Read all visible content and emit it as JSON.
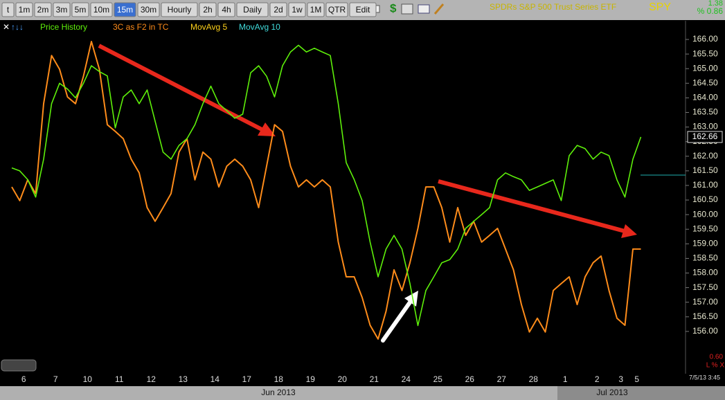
{
  "toolbar": [
    "t",
    "1m",
    "2m",
    "3m",
    "5m",
    "10m",
    "15m",
    "30m",
    "Hourly",
    "2h",
    "4h",
    "Daily",
    "2d",
    "1w",
    "1M",
    "QTR",
    "Edit"
  ],
  "active_button": "15m",
  "header": {
    "instrument": "SPDRs S&P 500 Trust Series ETF",
    "symbol": "SPY",
    "change": "1.38",
    "change_pct": "% 0.86"
  },
  "indicators": [
    {
      "name": "MovAvg 5",
      "color": "#ffd21a"
    },
    {
      "name": "MovAvg 10",
      "color": "#40dcdc"
    }
  ],
  "footer": {
    "months": [
      "Jun 2013",
      "Jul 2013"
    ],
    "timestamp": "7/5/13 3:45",
    "side_value": "0.60",
    "side_flags": "L % X"
  },
  "chart_data": {
    "type": "line",
    "categories": [
      null,
      "6",
      null,
      null,
      null,
      "7",
      null,
      null,
      null,
      "10",
      null,
      null,
      null,
      "11",
      null,
      null,
      null,
      "12",
      null,
      null,
      null,
      "13",
      null,
      null,
      null,
      "14",
      null,
      null,
      null,
      "17",
      null,
      null,
      null,
      "18",
      null,
      null,
      null,
      "19",
      null,
      null,
      null,
      "20",
      null,
      null,
      null,
      "21",
      null,
      null,
      null,
      "24",
      null,
      null,
      null,
      "25",
      null,
      null,
      null,
      "26",
      null,
      null,
      null,
      "27",
      null,
      null,
      null,
      "28",
      null,
      null,
      null,
      "1",
      null,
      null,
      null,
      "2",
      null,
      null,
      "3",
      null,
      "5",
      null
    ],
    "series": [
      {
        "name": "Price History",
        "color": "#5ef00a",
        "values": [
          161.6,
          161.5,
          161.2,
          160.6,
          161.9,
          163.8,
          164.5,
          164.3,
          164.0,
          164.5,
          165.1,
          164.9,
          164.75,
          162.97,
          164.03,
          164.27,
          163.8,
          164.27,
          163.2,
          162.14,
          161.9,
          162.37,
          162.6,
          163.08,
          163.8,
          164.4,
          163.8,
          163.56,
          163.3,
          163.44,
          164.86,
          165.1,
          164.74,
          164.03,
          165.1,
          165.57,
          165.8,
          165.57,
          165.7,
          165.57,
          165.45,
          163.8,
          161.78,
          161.2,
          160.48,
          159.06,
          157.87,
          158.82,
          159.29,
          158.82,
          157.64,
          156.2,
          157.4,
          157.87,
          158.35,
          158.46,
          158.82,
          159.53,
          159.77,
          160.0,
          160.24,
          161.19,
          161.43,
          161.3,
          161.19,
          160.83,
          160.95,
          161.07,
          161.19,
          160.48,
          162.02,
          162.37,
          162.26,
          161.9,
          162.14,
          162.02,
          161.19,
          160.6,
          161.9,
          162.66
        ]
      },
      {
        "name": "3C as F2 in TC",
        "color": "#ff8c1a",
        "values": [
          160.95,
          160.48,
          161.19,
          160.72,
          163.8,
          165.45,
          164.98,
          164.03,
          163.8,
          164.74,
          165.93,
          164.98,
          163.08,
          162.85,
          162.6,
          161.9,
          161.43,
          160.24,
          159.77,
          160.24,
          160.72,
          162.14,
          162.6,
          161.19,
          162.14,
          161.9,
          160.95,
          161.66,
          161.9,
          161.66,
          161.19,
          160.24,
          161.66,
          163.08,
          162.85,
          161.66,
          160.95,
          161.19,
          160.95,
          161.19,
          160.95,
          159.06,
          157.87,
          157.87,
          157.16,
          156.21,
          155.74,
          156.69,
          158.11,
          157.4,
          158.35,
          159.53,
          160.95,
          160.95,
          160.24,
          159.06,
          160.24,
          159.29,
          159.77,
          159.06,
          159.29,
          159.53,
          158.82,
          158.11,
          156.92,
          155.98,
          156.45,
          155.98,
          157.4,
          157.64,
          157.87,
          156.92,
          157.87,
          158.35,
          158.58,
          157.4,
          156.45,
          156.21,
          158.82,
          158.82
        ]
      }
    ],
    "last_price": 162.66,
    "ylim": [
      154.67,
      166.64
    ],
    "yticks": [
      {
        "value": 156,
        "label": "156.00"
      },
      {
        "value": 156.5,
        "label": "156.50"
      },
      {
        "value": 157,
        "label": "157.00"
      },
      {
        "value": 157.5,
        "label": "157.50"
      },
      {
        "value": 158,
        "label": "158.00"
      },
      {
        "value": 158.5,
        "label": "158.50"
      },
      {
        "value": 159,
        "label": "159.00"
      },
      {
        "value": 159.5,
        "label": "159.50"
      },
      {
        "value": 160,
        "label": "160.00"
      },
      {
        "value": 160.5,
        "label": "160.50"
      },
      {
        "value": 161,
        "label": "161.00"
      },
      {
        "value": 161.5,
        "label": "161.50"
      },
      {
        "value": 162,
        "label": "162.00"
      },
      {
        "value": 162.5,
        "label": "162.50"
      },
      {
        "value": 163,
        "label": "163.00"
      },
      {
        "value": 163.5,
        "label": "163.50"
      },
      {
        "value": 164,
        "label": "164.00"
      },
      {
        "value": 164.5,
        "label": "164.50"
      },
      {
        "value": 165,
        "label": "165.00"
      },
      {
        "value": 165.5,
        "label": "165.50"
      },
      {
        "value": 166,
        "label": "166.00"
      }
    ],
    "grid": false
  }
}
